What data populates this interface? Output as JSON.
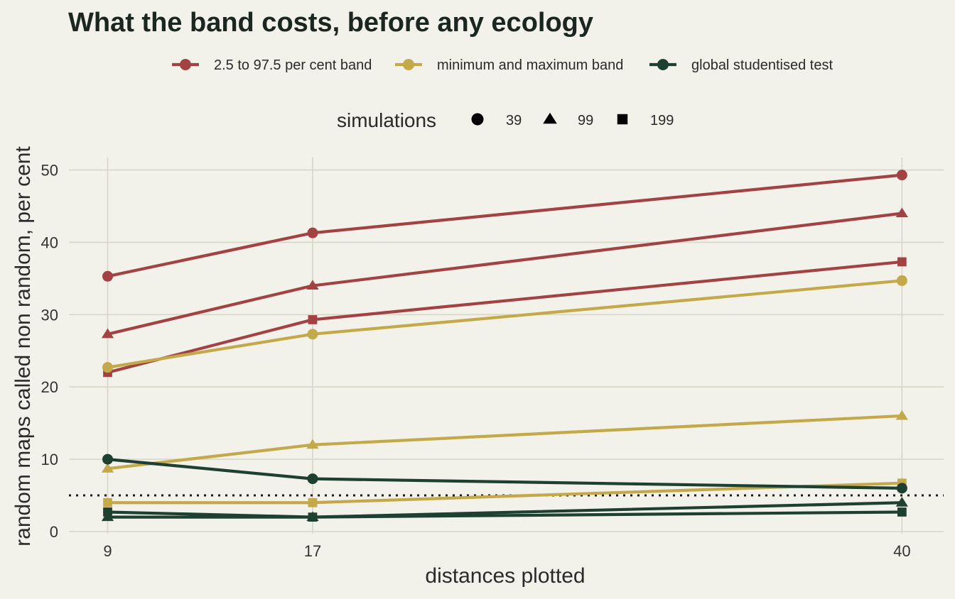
{
  "chart_data": {
    "type": "line",
    "title": "What the band costs, before any ecology",
    "xlabel": "distances plotted",
    "ylabel": "random maps called non random, per cent",
    "x": [
      9,
      17,
      40
    ],
    "xlim": [
      7.5,
      42.5
    ],
    "ylim": [
      0,
      52
    ],
    "yticks": [
      0,
      10,
      20,
      30,
      40,
      50
    ],
    "reference_line": 5,
    "grid": true,
    "legend_position": "top",
    "method_legend": [
      {
        "name": "2.5 to 97.5 per cent band",
        "color": "#a34242"
      },
      {
        "name": "minimum and maximum band",
        "color": "#c4a94a"
      },
      {
        "name": "global studentised test",
        "color": "#1e4030"
      }
    ],
    "simulations_legend": {
      "title": "simulations",
      "items": [
        {
          "label": "39",
          "shape": "circle"
        },
        {
          "label": "99",
          "shape": "triangle"
        },
        {
          "label": "199",
          "shape": "square"
        }
      ]
    },
    "series": [
      {
        "method": "2.5 to 97.5 per cent band",
        "simulations": "39",
        "shape": "circle",
        "color": "#a34242",
        "values": [
          35.3,
          41.3,
          49.3
        ]
      },
      {
        "method": "2.5 to 97.5 per cent band",
        "simulations": "99",
        "shape": "triangle",
        "color": "#a34242",
        "values": [
          27.3,
          34.0,
          44.0
        ]
      },
      {
        "method": "2.5 to 97.5 per cent band",
        "simulations": "199",
        "shape": "square",
        "color": "#a34242",
        "values": [
          22.0,
          29.3,
          37.3
        ]
      },
      {
        "method": "minimum and maximum band",
        "simulations": "39",
        "shape": "circle",
        "color": "#c4a94a",
        "values": [
          22.7,
          27.3,
          34.7
        ]
      },
      {
        "method": "minimum and maximum band",
        "simulations": "99",
        "shape": "triangle",
        "color": "#c4a94a",
        "values": [
          8.7,
          12.0,
          16.0
        ]
      },
      {
        "method": "minimum and maximum band",
        "simulations": "199",
        "shape": "square",
        "color": "#c4a94a",
        "values": [
          4.0,
          4.0,
          6.7
        ]
      },
      {
        "method": "global studentised test",
        "simulations": "39",
        "shape": "circle",
        "color": "#1e4030",
        "values": [
          10.0,
          7.3,
          6.0
        ]
      },
      {
        "method": "global studentised test",
        "simulations": "99",
        "shape": "triangle",
        "color": "#1e4030",
        "values": [
          2.0,
          2.0,
          4.0
        ]
      },
      {
        "method": "global studentised test",
        "simulations": "199",
        "shape": "square",
        "color": "#1e4030",
        "values": [
          2.7,
          2.0,
          2.7
        ]
      }
    ]
  }
}
